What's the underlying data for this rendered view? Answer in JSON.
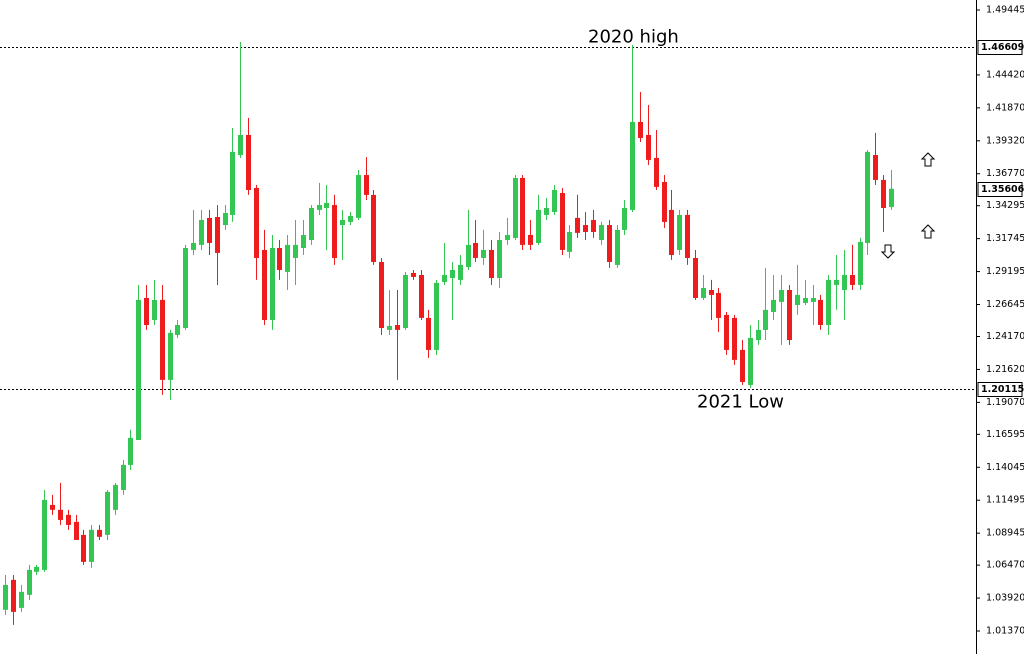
{
  "chart_data": {
    "type": "candlestick",
    "up_color": "#33c653",
    "down_color": "#ee1c1c",
    "ylim": [
      0.9959,
      1.5022
    ],
    "yticks": [
      1.49445,
      {
        "value": 1.4442,
        "label": "1.44420"
      },
      {
        "value": 1.4187,
        "label": "1.41870"
      },
      {
        "value": 1.3932,
        "label": "1.39320"
      },
      {
        "value": 1.3677,
        "label": "1.36770"
      },
      1.34295,
      1.31745,
      1.29195,
      1.26645,
      {
        "value": 1.2417,
        "label": "1.24170"
      },
      {
        "value": 1.2162,
        "label": "1.21620"
      },
      {
        "value": 1.1907,
        "label": "1.19070"
      },
      1.16595,
      1.14045,
      1.11495,
      1.08945,
      {
        "value": 1.0647,
        "label": "1.06470"
      },
      {
        "value": 1.0392,
        "label": "1.03920"
      },
      {
        "value": 1.0137,
        "label": "1.01370"
      }
    ],
    "levels": [
      {
        "price": 1.46609,
        "label": "2020 high"
      },
      {
        "price": 1.20115,
        "label": "2021 Low"
      }
    ],
    "series": {
      "open": [
        1.0301,
        1.0533,
        1.0316,
        1.0417,
        1.0595,
        1.061,
        1.1113,
        1.1075,
        1.1036,
        1.0982,
        1.0881,
        1.0672,
        1.092,
        1.0881,
        1.1075,
        1.1229,
        1.1423,
        1.1616,
        1.2715,
        1.2545,
        1.27,
        1.2081,
        1.2429,
        1.2483,
        1.3087,
        1.3126,
        1.3335,
        1.3342,
        1.328,
        1.3358,
        1.3822,
        1.3977,
        1.3567,
        1.3087,
        1.2545,
        1.3102,
        1.2917,
        1.3025,
        1.3102,
        1.3164,
        1.3397,
        1.3412,
        1.3435,
        1.328,
        1.3304,
        1.3335,
        1.3667,
        1.3513,
        1.2994,
        1.2468,
        1.2506,
        1.2483,
        1.2909,
        1.2893,
        1.2561,
        1.2313,
        1.2839,
        1.287,
        1.2855,
        1.2955,
        1.3141,
        1.3025,
        1.3087,
        1.287,
        1.3164,
        1.318,
        1.3644,
        1.3203,
        1.3141,
        1.3358,
        1.3381,
        1.3528,
        1.3072,
        1.3335,
        1.328,
        1.3319,
        1.3164,
        1.328,
        1.2971,
        1.3242,
        1.3397,
        1.4078,
        1.3977,
        1.3799,
        1.3613,
        1.3397,
        1.3087,
        1.3358,
        1.3025,
        1.2715,
        1.2777,
        1.2754,
        1.2584,
        1.2561,
        1.2313,
        1.2042,
        1.239,
        1.2468,
        1.2607,
        1.2685,
        1.2777,
        1.2661,
        1.2677,
        1.2685,
        1.27,
        1.2506,
        1.2816,
        1.2777,
        1.2893,
        1.2816,
        1.3141,
        1.3822,
        1.3629,
        1.342
      ],
      "high": [
        1.0571,
        1.0571,
        1.0494,
        1.0649,
        1.0649,
        1.1229,
        1.1191,
        1.1284,
        1.1075,
        1.1036,
        1.092,
        1.0958,
        1.0958,
        1.1229,
        1.1284,
        1.1462,
        1.1694,
        1.2816,
        1.2816,
        1.2855,
        1.2816,
        1.2468,
        1.2545,
        1.3126,
        1.3397,
        1.3397,
        1.3397,
        1.3435,
        1.3435,
        1.4031,
        1.4697,
        1.4109,
        1.359,
        1.3242,
        1.3203,
        1.3164,
        1.3203,
        1.3319,
        1.3319,
        1.3435,
        1.3606,
        1.359,
        1.3513,
        1.3397,
        1.3381,
        1.3706,
        1.3807,
        1.3551,
        1.3025,
        1.2777,
        1.2777,
        1.2917,
        1.2932,
        1.2932,
        1.2623,
        1.2855,
        1.3141,
        1.2994,
        1.3048,
        1.3397,
        1.3319,
        1.3242,
        1.3164,
        1.3226,
        1.3335,
        1.3667,
        1.3667,
        1.3319,
        1.3513,
        1.3489,
        1.359,
        1.3567,
        1.328,
        1.3513,
        1.3381,
        1.3397,
        1.3304,
        1.3319,
        1.328,
        1.3474,
        1.4674,
        1.431,
        1.4209,
        1.4016,
        1.3667,
        1.3551,
        1.3397,
        1.3397,
        1.3087,
        1.2893,
        1.2855,
        1.2793,
        1.2607,
        1.2584,
        1.239,
        1.2506,
        1.2545,
        1.2948,
        1.2893,
        1.2893,
        1.2816,
        1.2971,
        1.2855,
        1.2816,
        1.2739,
        1.2893,
        1.3048,
        1.3087,
        1.3126,
        1.318,
        1.3861,
        1.3993,
        1.3667,
        1.3706
      ],
      "low": [
        1.0262,
        1.0184,
        1.0285,
        1.0378,
        1.0571,
        1.0595,
        1.1036,
        1.0958,
        1.092,
        1.0842,
        1.0649,
        1.0626,
        1.0842,
        1.0842,
        1.1036,
        1.1191,
        1.1384,
        1.1616,
        1.2468,
        1.2506,
        1.1965,
        1.1926,
        1.2406,
        1.2468,
        1.3048,
        1.3087,
        1.3048,
        1.2816,
        1.3242,
        1.3304,
        1.3799,
        1.3513,
        1.2855,
        1.2506,
        1.2468,
        1.2855,
        1.2777,
        1.2816,
        1.3048,
        1.3126,
        1.3358,
        1.3087,
        1.2971,
        1.301,
        1.328,
        1.3319,
        1.3474,
        1.2971,
        1.2429,
        1.2429,
        1.2081,
        1.2468,
        1.2855,
        1.2545,
        1.2251,
        1.2274,
        1.2816,
        1.2545,
        1.2816,
        1.2932,
        1.2994,
        1.2971,
        1.2816,
        1.2793,
        1.3126,
        1.3164,
        1.3087,
        1.3087,
        1.3126,
        1.3319,
        1.3358,
        1.3048,
        1.3025,
        1.318,
        1.3164,
        1.318,
        1.3126,
        1.2948,
        1.2948,
        1.3203,
        1.3381,
        1.3923,
        1.3745,
        1.3551,
        1.3257,
        1.301,
        1.3048,
        1.2971,
        1.27,
        1.27,
        1.2545,
        1.2452,
        1.2274,
        1.2197,
        1.2042,
        1.2019,
        1.2352,
        1.239,
        1.2545,
        1.2352,
        1.2352,
        1.2584,
        1.2661,
        1.2506,
        1.2468,
        1.2429,
        1.2623,
        1.2545,
        1.2777,
        1.2777,
        1.3048,
        1.359,
        1.3226,
        1.3397
      ],
      "close": [
        1.0494,
        1.0285,
        1.044,
        1.061,
        1.0633,
        1.1152,
        1.1075,
        1.0997,
        1.0958,
        1.0842,
        1.0672,
        1.092,
        1.0866,
        1.1214,
        1.1268,
        1.1423,
        1.1632,
        1.27,
        1.2506,
        1.27,
        1.2081,
        1.2445,
        1.2506,
        1.3102,
        1.3141,
        1.3319,
        1.3141,
        1.3064,
        1.3373,
        1.3846,
        1.3977,
        1.3551,
        1.3025,
        1.2545,
        1.3102,
        1.2932,
        1.3126,
        1.3126,
        1.3203,
        1.3412,
        1.3435,
        1.3451,
        1.3025,
        1.3319,
        1.335,
        1.3667,
        1.3513,
        1.2994,
        1.2483,
        1.2499,
        1.2468,
        1.2893,
        1.2878,
        1.2561,
        1.2313,
        1.2832,
        1.2893,
        1.2932,
        1.2971,
        1.3126,
        1.3025,
        1.3087,
        1.287,
        1.3164,
        1.3203,
        1.3644,
        1.3126,
        1.3126,
        1.3397,
        1.3412,
        1.3551,
        1.3087,
        1.3226,
        1.3219,
        1.3226,
        1.3226,
        1.328,
        1.2994,
        1.3242,
        1.3412,
        1.4078,
        1.3954,
        1.3784,
        1.3575,
        1.3304,
        1.3048,
        1.3358,
        1.3025,
        1.2715,
        1.2793,
        1.2739,
        1.2561,
        1.2313,
        1.2236,
        1.2065,
        1.2406,
        1.2468,
        1.2623,
        1.27,
        1.2777,
        1.239,
        1.2739,
        1.2715,
        1.2715,
        1.2506,
        1.2855,
        1.2855,
        1.2893,
        1.2816,
        1.3149,
        1.3846,
        1.3629,
        1.3412,
        1.35606
      ]
    }
  }
}
